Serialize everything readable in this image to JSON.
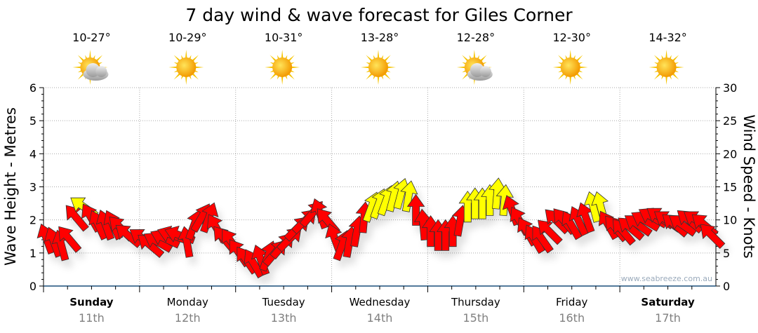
{
  "chart_data": {
    "type": "scatter",
    "title": "7 day wind & wave forecast for Giles Corner",
    "ylabel": "Wave Height - Metres",
    "y2label": "Wind Speed - Knots",
    "ylim": [
      0,
      6
    ],
    "y2lim": [
      0,
      30
    ],
    "yticks": [
      "0",
      "1",
      "2",
      "3",
      "4",
      "5",
      "6"
    ],
    "y2ticks": [
      "0",
      "5",
      "10",
      "15",
      "20",
      "25",
      "30"
    ],
    "grid": true,
    "watermark": "www.seabreeze.com.au",
    "colors": {
      "normal": "#ff0000",
      "strong": "#ffff00",
      "strong_threshold_knots": 11.9
    },
    "days": [
      {
        "name": "Sunday",
        "date": "11th",
        "temp": "10-27°",
        "icon": "sun-cloud",
        "bold": true
      },
      {
        "name": "Monday",
        "date": "12th",
        "temp": "10-29°",
        "icon": "sun",
        "bold": false
      },
      {
        "name": "Tuesday",
        "date": "13th",
        "temp": "10-31°",
        "icon": "sun",
        "bold": false
      },
      {
        "name": "Wednesday",
        "date": "14th",
        "temp": "13-28°",
        "icon": "sun",
        "bold": false
      },
      {
        "name": "Thursday",
        "date": "15th",
        "temp": "12-28°",
        "icon": "sun-cloud",
        "bold": false
      },
      {
        "name": "Friday",
        "date": "16th",
        "temp": "12-30°",
        "icon": "sun",
        "bold": false
      },
      {
        "name": "Saturday",
        "date": "17th",
        "temp": "14-32°",
        "icon": "sun",
        "bold": true
      }
    ],
    "wind_series_note": "each entry [speed_knots, arrow_bearing_deg]",
    "wind": [
      [
        [
          7.2,
          -20
        ],
        [
          6.7,
          -20
        ],
        [
          6.2,
          -15
        ],
        [
          7.2,
          -40
        ],
        [
          10.4,
          -40
        ],
        [
          12,
          -55
        ],
        [
          10.4,
          -30
        ],
        [
          9.3,
          -25
        ],
        [
          9.3,
          -20
        ],
        [
          9.3,
          -25
        ],
        [
          8.8,
          -45
        ],
        [
          7.7,
          -50
        ]
      ],
      [
        [
          7.2,
          -55
        ],
        [
          6.2,
          -50
        ],
        [
          6.7,
          -60
        ],
        [
          7.2,
          -65
        ],
        [
          7.7,
          -70
        ],
        [
          7.7,
          -70
        ],
        [
          6.7,
          -10
        ],
        [
          9.3,
          20
        ],
        [
          10.4,
          30
        ],
        [
          10.4,
          20
        ],
        [
          8.8,
          -30
        ],
        [
          7.2,
          -40
        ],
        [
          6.7,
          -35
        ]
      ],
      [
        [
          5.1,
          -35
        ],
        [
          4,
          -35
        ],
        [
          3.5,
          -30
        ],
        [
          4,
          -20
        ],
        [
          4.6,
          20
        ],
        [
          5.1,
          40
        ],
        [
          6.2,
          40
        ],
        [
          7.2,
          45
        ],
        [
          8.8,
          45
        ],
        [
          9.9,
          45
        ],
        [
          11,
          40
        ],
        [
          11,
          -20
        ],
        [
          9.9,
          -40
        ]
      ],
      [
        [
          7.2,
          -20
        ],
        [
          6.2,
          20
        ],
        [
          6.7,
          10
        ],
        [
          8.3,
          10
        ],
        [
          10.4,
          5
        ],
        [
          12,
          20
        ],
        [
          12.5,
          20
        ],
        [
          13,
          20
        ],
        [
          13.6,
          15
        ],
        [
          14,
          15
        ],
        [
          13.6,
          10
        ],
        [
          11.5,
          0
        ],
        [
          9.3,
          -5
        ]
      ],
      [
        [
          8.3,
          0
        ],
        [
          7.7,
          0
        ],
        [
          7.7,
          0
        ],
        [
          8.3,
          0
        ],
        [
          9.9,
          10
        ],
        [
          12,
          0
        ],
        [
          12.5,
          0
        ],
        [
          12.5,
          0
        ],
        [
          13,
          0
        ],
        [
          14,
          5
        ],
        [
          13,
          5
        ],
        [
          11.5,
          -20
        ],
        [
          9.9,
          -30
        ]
      ],
      [
        [
          8.3,
          -30
        ],
        [
          7.2,
          -30
        ],
        [
          7.2,
          -35
        ],
        [
          8.3,
          -45
        ],
        [
          9.9,
          -45
        ],
        [
          9.9,
          -40
        ],
        [
          9.3,
          -30
        ],
        [
          9.9,
          -25
        ],
        [
          10.4,
          -20
        ],
        [
          12,
          -15
        ],
        [
          12,
          -15
        ],
        [
          9.3,
          -30
        ],
        [
          8.8,
          -40
        ]
      ],
      [
        [
          8.3,
          -40
        ],
        [
          8.8,
          -50
        ],
        [
          9.3,
          -55
        ],
        [
          9.9,
          -60
        ],
        [
          10.4,
          -60
        ],
        [
          10.4,
          -55
        ],
        [
          9.9,
          -55
        ],
        [
          9.3,
          -50
        ],
        [
          9.3,
          -55
        ],
        [
          9.9,
          -50
        ],
        [
          9.9,
          -55
        ],
        [
          9.3,
          -50
        ],
        [
          7.7,
          -45
        ]
      ]
    ]
  }
}
